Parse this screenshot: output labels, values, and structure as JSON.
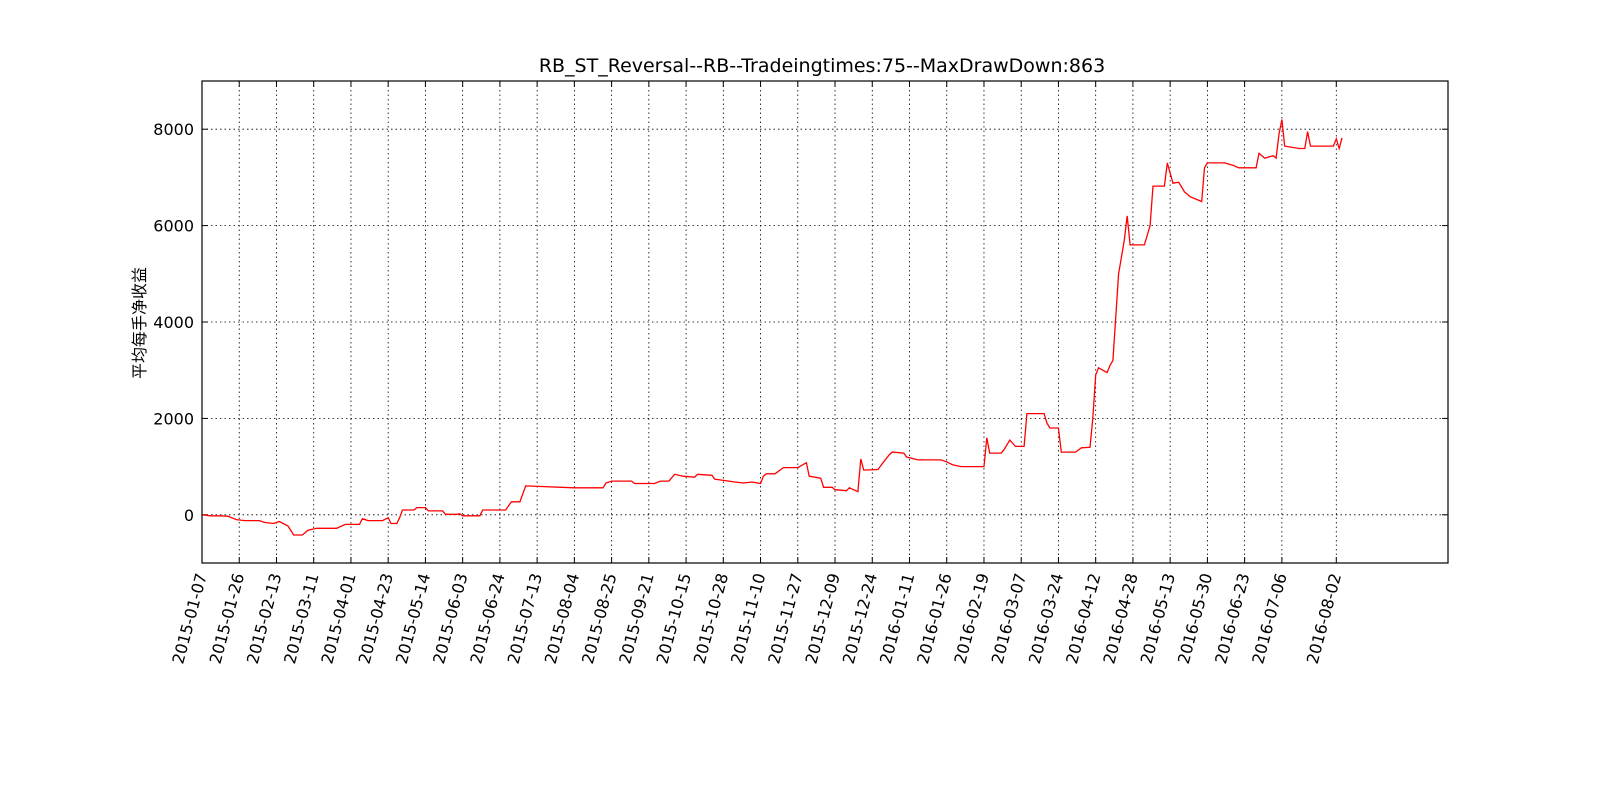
{
  "chart_data": {
    "type": "line",
    "title": "RB_ST_Reversal--RB--Tradeingtimes:75--MaxDrawDown:863",
    "xlabel": "",
    "ylabel": "平均每手净收益",
    "ylim": [
      -1000,
      9000
    ],
    "yticks": [
      0,
      2000,
      4000,
      6000,
      8000
    ],
    "xtick_labels": [
      "2015-01-07",
      "2015-01-26",
      "2015-02-13",
      "2015-03-11",
      "2015-04-01",
      "2015-04-23",
      "2015-05-14",
      "2015-06-03",
      "2015-06-24",
      "2015-07-13",
      "2015-08-04",
      "2015-08-25",
      "2015-09-21",
      "2015-10-15",
      "2015-10-28",
      "2015-11-10",
      "2015-11-27",
      "2015-12-09",
      "2015-12-24",
      "2016-01-11",
      "2016-01-26",
      "2016-02-19",
      "2016-03-07",
      "2016-03-24",
      "2016-04-12",
      "2016-04-28",
      "2016-05-13",
      "2016-05-30",
      "2016-06-23",
      "2016-07-06",
      "2016-08-02"
    ],
    "xtick_positions": [
      0,
      13,
      26,
      39,
      52,
      65,
      78,
      91,
      104,
      117,
      130,
      143,
      156,
      169,
      182,
      195,
      208,
      221,
      234,
      247,
      260,
      273,
      286,
      299,
      312,
      325,
      338,
      351,
      364,
      377,
      396
    ],
    "xlim": [
      0,
      435
    ],
    "grid": true,
    "color": "#ff0000",
    "series": [
      {
        "name": "",
        "points": [
          [
            0,
            0
          ],
          [
            3,
            -20
          ],
          [
            6,
            -20
          ],
          [
            9,
            -30
          ],
          [
            12,
            -100
          ],
          [
            15,
            -120
          ],
          [
            20,
            -120
          ],
          [
            22,
            -160
          ],
          [
            25,
            -180
          ],
          [
            27,
            -140
          ],
          [
            30,
            -230
          ],
          [
            32,
            -420
          ],
          [
            35,
            -420
          ],
          [
            37,
            -320
          ],
          [
            40,
            -280
          ],
          [
            45,
            -280
          ],
          [
            47,
            -280
          ],
          [
            50,
            -200
          ],
          [
            52,
            -200
          ],
          [
            55,
            -200
          ],
          [
            56,
            -80
          ],
          [
            58,
            -120
          ],
          [
            63,
            -120
          ],
          [
            65,
            -60
          ],
          [
            66,
            -180
          ],
          [
            68,
            -180
          ],
          [
            69,
            -60
          ],
          [
            70,
            100
          ],
          [
            74,
            100
          ],
          [
            75,
            150
          ],
          [
            78,
            150
          ],
          [
            79,
            80
          ],
          [
            84,
            80
          ],
          [
            85,
            10
          ],
          [
            89,
            10
          ],
          [
            90,
            20
          ],
          [
            91,
            -20
          ],
          [
            97,
            -20
          ],
          [
            98,
            100
          ],
          [
            106,
            100
          ],
          [
            108,
            270
          ],
          [
            111,
            270
          ],
          [
            113,
            600
          ],
          [
            130,
            560
          ],
          [
            140,
            560
          ],
          [
            141,
            660
          ],
          [
            143,
            700
          ],
          [
            150,
            700
          ],
          [
            151,
            650
          ],
          [
            158,
            650
          ],
          [
            160,
            700
          ],
          [
            163,
            700
          ],
          [
            165,
            840
          ],
          [
            168,
            800
          ],
          [
            172,
            780
          ],
          [
            173,
            840
          ],
          [
            178,
            820
          ],
          [
            179,
            740
          ],
          [
            186,
            680
          ],
          [
            189,
            660
          ],
          [
            192,
            680
          ],
          [
            195,
            650
          ],
          [
            196,
            800
          ],
          [
            197,
            850
          ],
          [
            200,
            850
          ],
          [
            203,
            980
          ],
          [
            208,
            980
          ],
          [
            211,
            1080
          ],
          [
            212,
            800
          ],
          [
            216,
            760
          ],
          [
            217,
            570
          ],
          [
            220,
            570
          ],
          [
            221,
            520
          ],
          [
            225,
            500
          ],
          [
            226,
            560
          ],
          [
            229,
            480
          ],
          [
            230,
            1160
          ],
          [
            231,
            930
          ],
          [
            232,
            930
          ],
          [
            236,
            940
          ],
          [
            238,
            1100
          ],
          [
            240,
            1250
          ],
          [
            241,
            1300
          ],
          [
            245,
            1280
          ],
          [
            246,
            1200
          ],
          [
            250,
            1140
          ],
          [
            258,
            1140
          ],
          [
            260,
            1100
          ],
          [
            262,
            1040
          ],
          [
            265,
            1000
          ],
          [
            273,
            1000
          ],
          [
            274,
            1600
          ],
          [
            275,
            1280
          ],
          [
            279,
            1280
          ],
          [
            280,
            1350
          ],
          [
            282,
            1550
          ],
          [
            284,
            1420
          ],
          [
            287,
            1420
          ],
          [
            288,
            2100
          ],
          [
            294,
            2100
          ],
          [
            295,
            1900
          ],
          [
            296,
            1800
          ],
          [
            299,
            1800
          ],
          [
            300,
            1300
          ],
          [
            305,
            1300
          ],
          [
            307,
            1390
          ],
          [
            310,
            1400
          ],
          [
            311,
            2000
          ],
          [
            312,
            2900
          ],
          [
            313,
            3050
          ],
          [
            316,
            2950
          ],
          [
            317,
            3100
          ],
          [
            318,
            3200
          ],
          [
            320,
            5000
          ],
          [
            322,
            5700
          ],
          [
            323,
            6200
          ],
          [
            324,
            5600
          ],
          [
            327,
            5600
          ],
          [
            329,
            5600
          ],
          [
            331,
            6000
          ],
          [
            332,
            6820
          ],
          [
            336,
            6820
          ],
          [
            337,
            7300
          ],
          [
            339,
            6880
          ],
          [
            341,
            6900
          ],
          [
            342,
            6800
          ],
          [
            343,
            6700
          ],
          [
            345,
            6600
          ],
          [
            349,
            6500
          ],
          [
            350,
            7200
          ],
          [
            351,
            7300
          ],
          [
            357,
            7300
          ],
          [
            360,
            7250
          ],
          [
            362,
            7200
          ],
          [
            368,
            7200
          ],
          [
            369,
            7500
          ],
          [
            371,
            7400
          ],
          [
            374,
            7450
          ],
          [
            375,
            7400
          ],
          [
            376,
            7900
          ],
          [
            377,
            8200
          ],
          [
            378,
            7650
          ],
          [
            383,
            7600
          ],
          [
            385,
            7600
          ],
          [
            386,
            7950
          ],
          [
            387,
            7650
          ],
          [
            395,
            7650
          ],
          [
            396,
            7800
          ],
          [
            397,
            7600
          ],
          [
            398,
            7820
          ]
        ]
      }
    ]
  }
}
